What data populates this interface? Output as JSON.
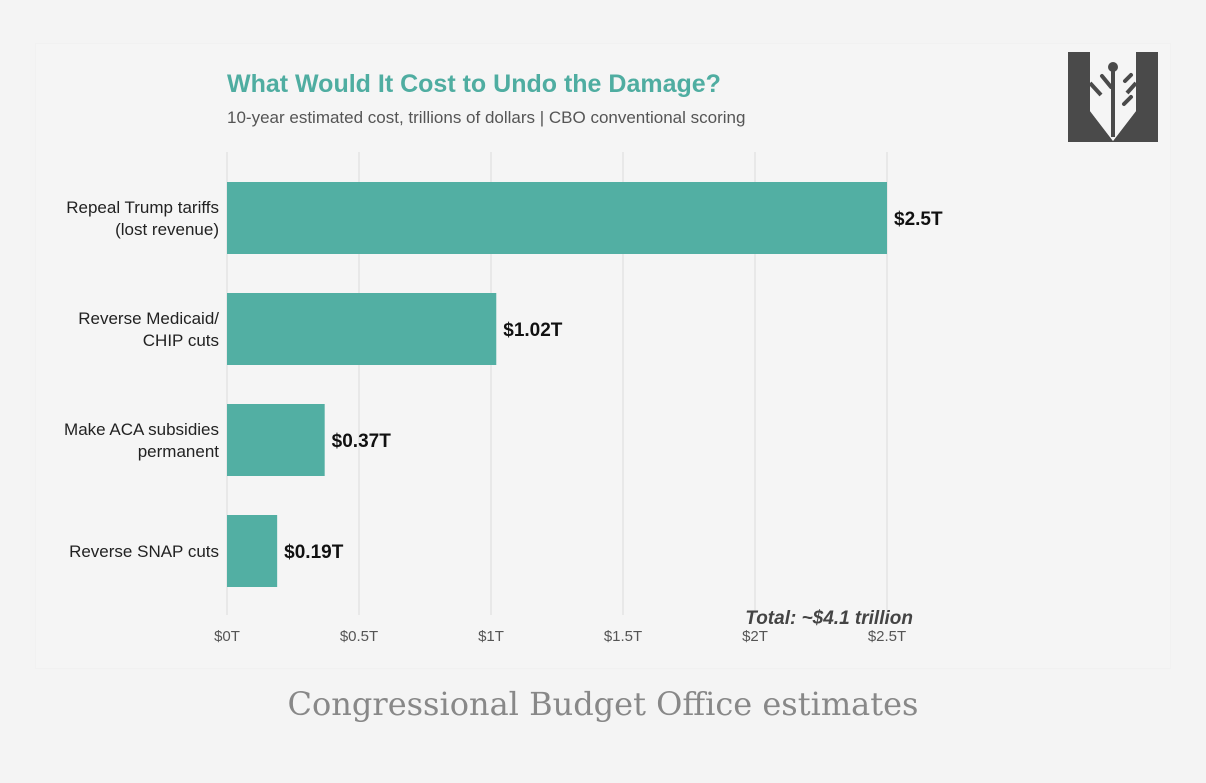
{
  "header": {
    "title": "What Would It Cost to Undo the Damage?",
    "subtitle": "10-year estimated cost, trillions of dollars | CBO conventional scoring"
  },
  "logo": {
    "icon": "tree-shield-logo-icon"
  },
  "colors": {
    "bar": "#52afa3",
    "title": "#4fada1",
    "gridline": "#dcdcdc",
    "value_label": "#111111",
    "tick_label": "#555555",
    "total_label": "#444444"
  },
  "chart_data": {
    "type": "bar",
    "orientation": "horizontal",
    "title": "What Would It Cost to Undo the Damage?",
    "subtitle": "10-year estimated cost, trillions of dollars | CBO conventional scoring",
    "categories": [
      [
        "Repeal Trump tariffs",
        "(lost revenue)"
      ],
      [
        "Reverse Medicaid/",
        "CHIP cuts"
      ],
      [
        "Make ACA subsidies",
        "permanent"
      ],
      [
        "Reverse SNAP cuts"
      ]
    ],
    "values": [
      2.5,
      1.02,
      0.37,
      0.19
    ],
    "value_labels": [
      "$2.5T",
      "$1.02T",
      "$0.37T",
      "$0.19T"
    ],
    "xlabel": "",
    "ylabel": "",
    "xlim": [
      0,
      2.5
    ],
    "x_ticks": [
      0,
      0.5,
      1,
      1.5,
      2,
      2.5
    ],
    "x_tick_labels": [
      "$0T",
      "$0.5T",
      "$1T",
      "$1.5T",
      "$2T",
      "$2.5T"
    ],
    "grid": "vertical",
    "legend": "none",
    "annotation": "Total: ~$4.1 trillion"
  },
  "footer": {
    "caption": "Congressional Budget Office estimates"
  }
}
